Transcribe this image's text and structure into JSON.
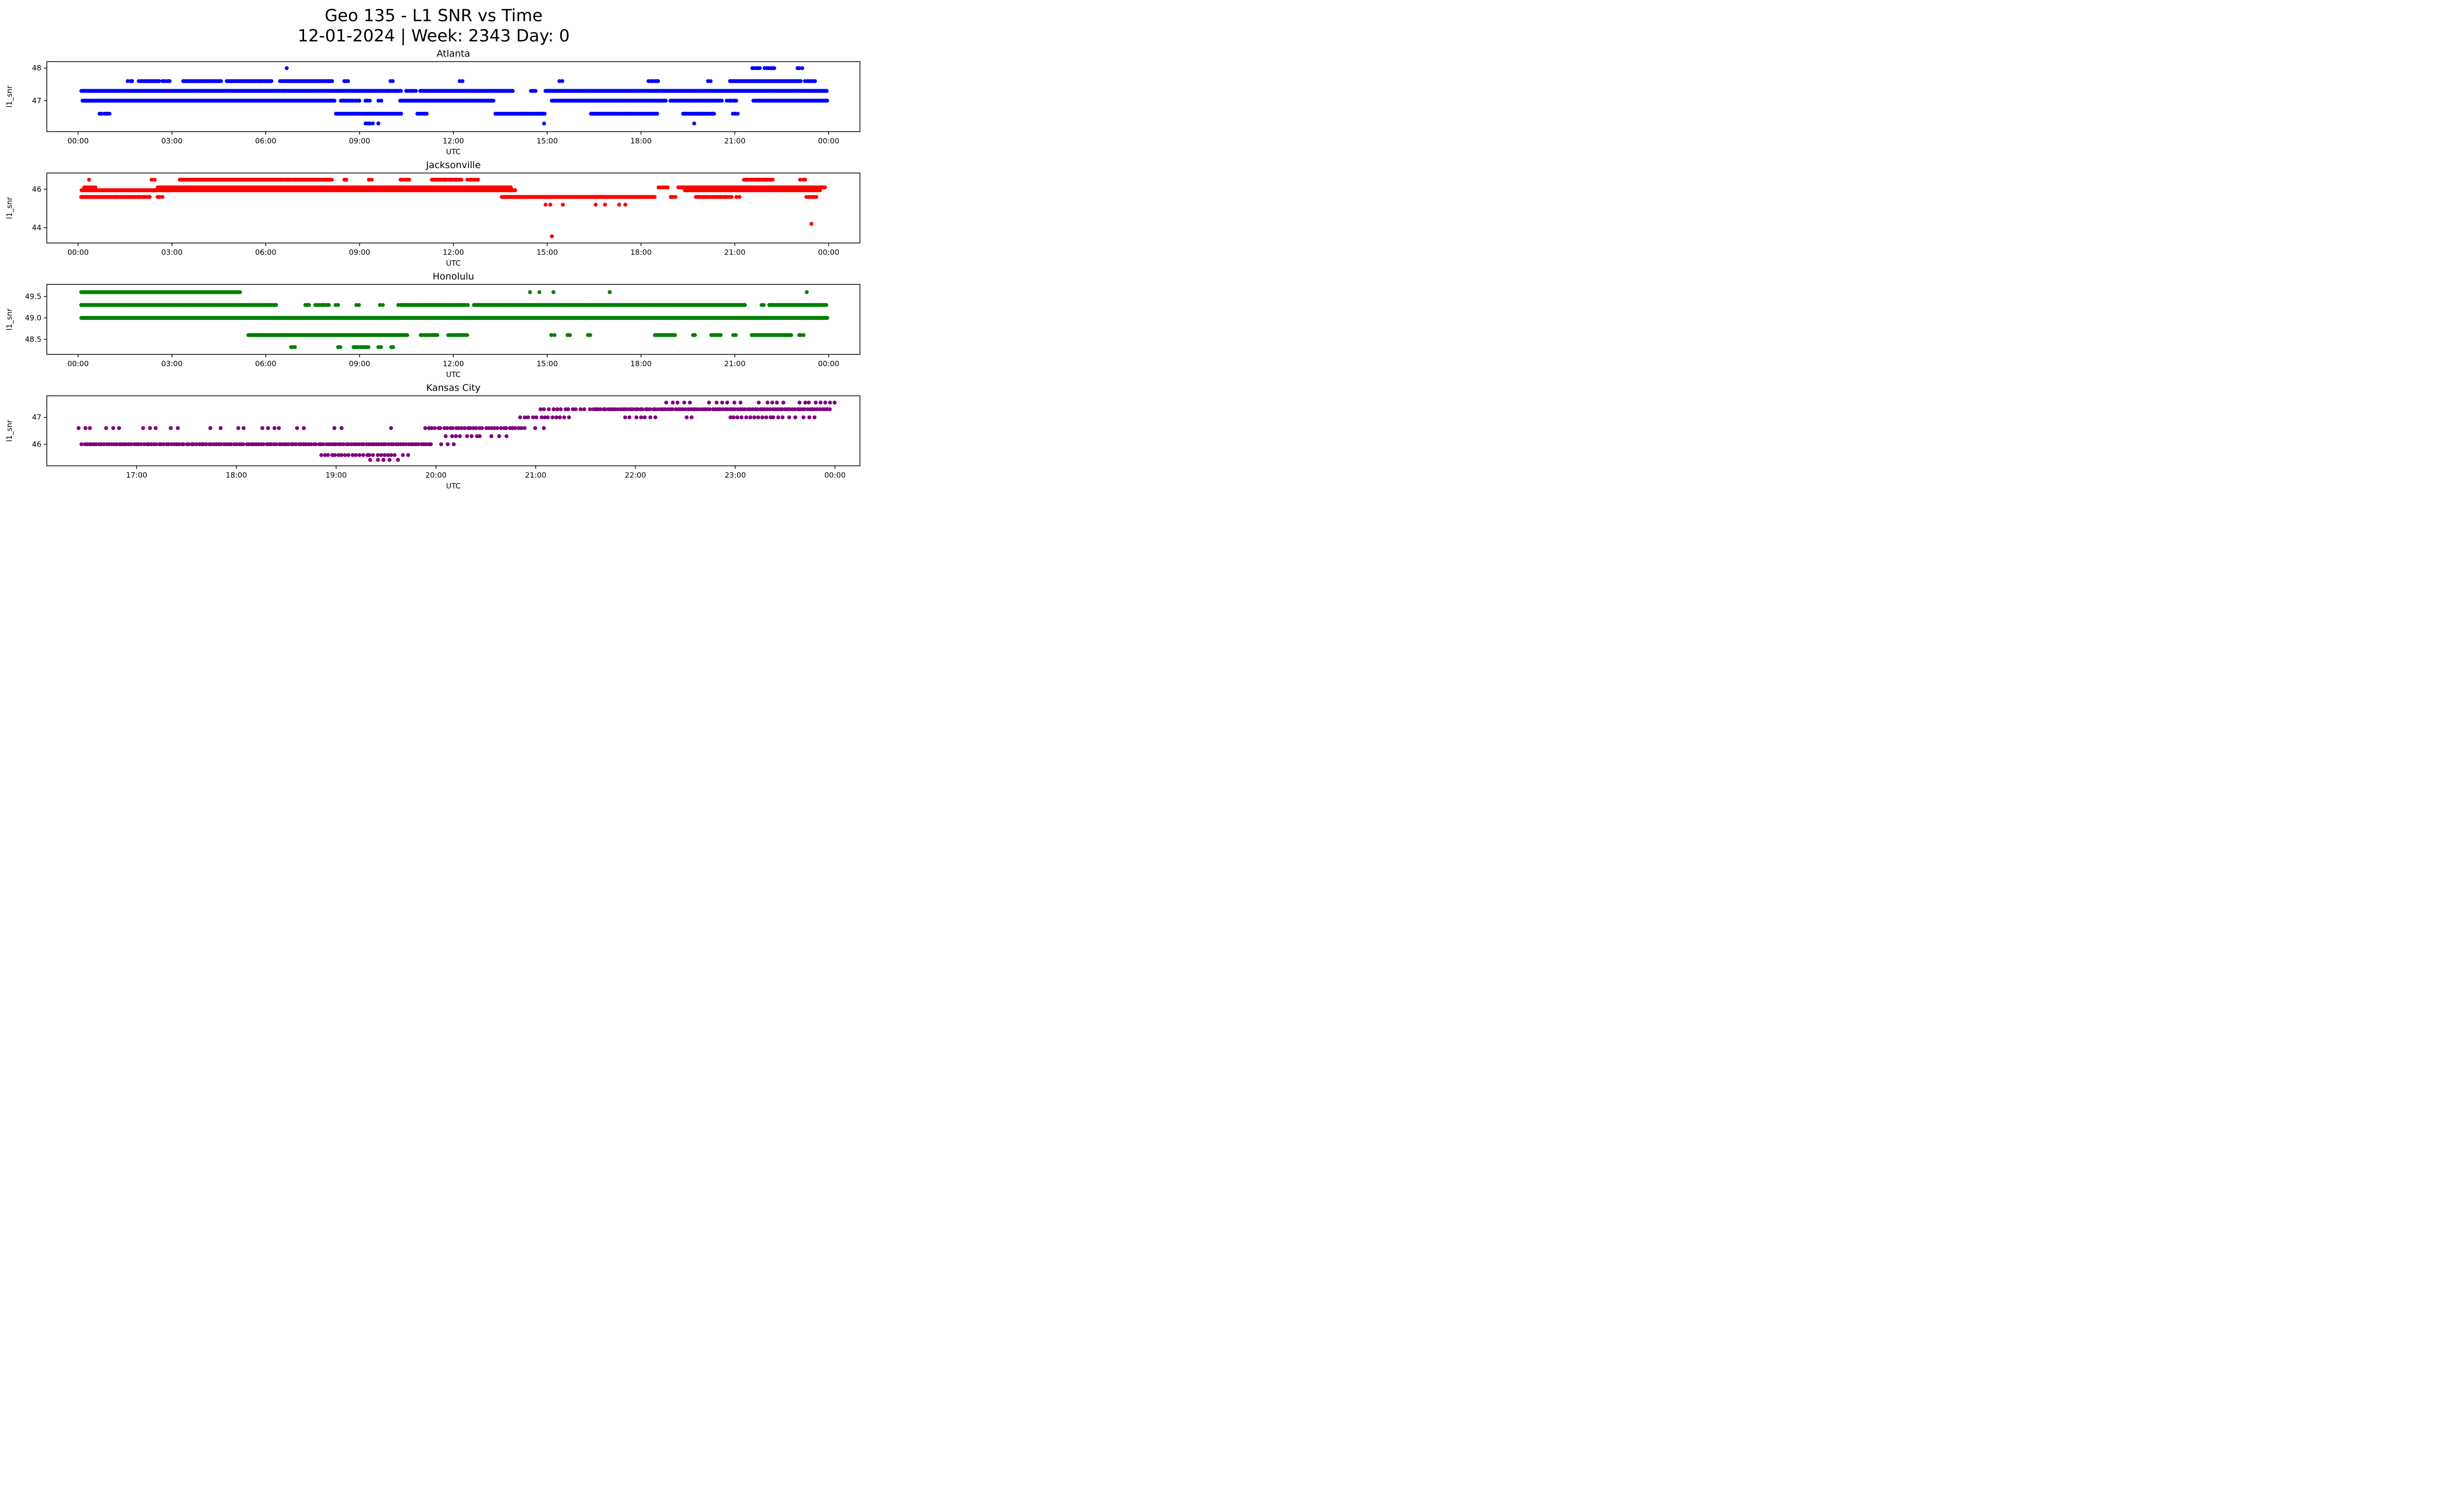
{
  "title": {
    "line1": "Geo 135 - L1 SNR vs Time",
    "line2": "12-01-2024 | Week: 2343 Day: 0"
  },
  "chart_data": [
    {
      "type": "scatter",
      "title": "Atlanta",
      "color": "#0000ff",
      "xlabel": "UTC",
      "ylabel": "l1_snr",
      "xlim": [
        -1.0,
        25.0
      ],
      "ylim": [
        46.05,
        48.2
      ],
      "xticks": [
        {
          "v": 0,
          "label": "00:00"
        },
        {
          "v": 3,
          "label": "03:00"
        },
        {
          "v": 6,
          "label": "06:00"
        },
        {
          "v": 9,
          "label": "09:00"
        },
        {
          "v": 12,
          "label": "12:00"
        },
        {
          "v": 15,
          "label": "15:00"
        },
        {
          "v": 18,
          "label": "18:00"
        },
        {
          "v": 21,
          "label": "21:00"
        },
        {
          "v": 24,
          "label": "00:00"
        }
      ],
      "yticks": [
        {
          "v": 47,
          "label": "47"
        },
        {
          "v": 48,
          "label": "48"
        }
      ],
      "bands": [
        {
          "y": 48.0,
          "seg": [
            [
              21.55,
              21.8,
              0.06
            ],
            [
              21.95,
              22.3,
              0.06
            ],
            [
              23.0,
              23.15,
              0.07
            ]
          ],
          "pts": [
            6.67
          ]
        },
        {
          "y": 47.6,
          "seg": [
            [
              1.6,
              1.75,
              0.07
            ],
            [
              1.95,
              2.6,
              0.05
            ],
            [
              2.7,
              2.95,
              0.06
            ],
            [
              3.35,
              4.6,
              0.045
            ],
            [
              4.75,
              6.2,
              0.045
            ],
            [
              6.45,
              8.15,
              0.045
            ],
            [
              8.5,
              8.65,
              0.07
            ],
            [
              10.0,
              10.1,
              0.08
            ],
            [
              12.2,
              12.35,
              0.08
            ],
            [
              15.4,
              15.5,
              0.08
            ],
            [
              18.25,
              18.55,
              0.06
            ],
            [
              20.15,
              20.25,
              0.08
            ],
            [
              20.85,
              23.1,
              0.045
            ],
            [
              23.25,
              23.6,
              0.06
            ]
          ]
        },
        {
          "y": 47.3,
          "seg": [
            [
              0.1,
              10.35,
              0.035
            ],
            [
              10.5,
              10.8,
              0.06
            ],
            [
              10.95,
              13.9,
              0.035
            ],
            [
              14.5,
              14.65,
              0.07
            ],
            [
              14.95,
              23.95,
              0.035
            ]
          ]
        },
        {
          "y": 47.0,
          "seg": [
            [
              0.15,
              8.2,
              0.035
            ],
            [
              8.4,
              9.0,
              0.05
            ],
            [
              9.2,
              9.35,
              0.07
            ],
            [
              9.6,
              9.7,
              0.08
            ],
            [
              10.3,
              13.3,
              0.035
            ],
            [
              15.15,
              18.8,
              0.035
            ],
            [
              18.95,
              20.6,
              0.04
            ],
            [
              20.75,
              21.1,
              0.06
            ],
            [
              21.6,
              23.95,
              0.035
            ]
          ]
        },
        {
          "y": 46.6,
          "seg": [
            [
              0.7,
              1.05,
              0.06
            ],
            [
              8.25,
              10.35,
              0.045
            ],
            [
              10.85,
              11.15,
              0.06
            ],
            [
              13.35,
              14.95,
              0.045
            ],
            [
              16.4,
              18.55,
              0.045
            ],
            [
              19.35,
              20.35,
              0.045
            ],
            [
              20.95,
              21.15,
              0.07
            ]
          ]
        },
        {
          "y": 46.3,
          "seg": [
            [
              9.2,
              9.45,
              0.07
            ]
          ],
          "pts": [
            9.6,
            14.9,
            19.7
          ]
        }
      ]
    },
    {
      "type": "scatter",
      "title": "Jacksonville",
      "color": "#ff0000",
      "xlabel": "UTC",
      "ylabel": "l1_snr",
      "xlim": [
        -1.0,
        25.0
      ],
      "ylim": [
        43.2,
        46.85
      ],
      "xticks": [
        {
          "v": 0,
          "label": "00:00"
        },
        {
          "v": 3,
          "label": "03:00"
        },
        {
          "v": 6,
          "label": "06:00"
        },
        {
          "v": 9,
          "label": "09:00"
        },
        {
          "v": 12,
          "label": "12:00"
        },
        {
          "v": 15,
          "label": "15:00"
        },
        {
          "v": 18,
          "label": "18:00"
        },
        {
          "v": 21,
          "label": "21:00"
        },
        {
          "v": 24,
          "label": "00:00"
        }
      ],
      "yticks": [
        {
          "v": 44,
          "label": "44"
        },
        {
          "v": 46,
          "label": "46"
        }
      ],
      "bands": [
        {
          "y": 46.5,
          "seg": [
            [
              2.35,
              2.45,
              0.08
            ],
            [
              3.25,
              8.15,
              0.045
            ],
            [
              8.5,
              8.6,
              0.08
            ],
            [
              9.3,
              9.45,
              0.08
            ],
            [
              10.3,
              10.6,
              0.07
            ],
            [
              11.3,
              12.25,
              0.05
            ],
            [
              12.45,
              12.85,
              0.07
            ],
            [
              21.3,
              22.2,
              0.05
            ],
            [
              23.1,
              23.3,
              0.07
            ]
          ],
          "pts": [
            0.35
          ]
        },
        {
          "y": 46.1,
          "seg": [
            [
              0.2,
              0.6,
              0.06
            ],
            [
              2.55,
              13.85,
              0.03
            ],
            [
              18.55,
              18.9,
              0.06
            ],
            [
              19.2,
              23.9,
              0.035
            ]
          ]
        },
        {
          "y": 45.95,
          "seg": [
            [
              0.12,
              14.0,
              0.033
            ],
            [
              19.4,
              23.75,
              0.045
            ]
          ]
        },
        {
          "y": 45.6,
          "seg": [
            [
              0.1,
              2.3,
              0.04
            ],
            [
              2.55,
              2.7,
              0.07
            ],
            [
              13.55,
              18.45,
              0.03
            ],
            [
              18.95,
              19.1,
              0.07
            ],
            [
              19.75,
              20.9,
              0.05
            ],
            [
              21.05,
              21.2,
              0.08
            ],
            [
              23.3,
              23.6,
              0.06
            ]
          ]
        },
        {
          "y": 45.2,
          "pts": [
            14.95,
            15.1,
            15.5,
            16.55,
            16.85,
            17.3,
            17.5
          ]
        },
        {
          "y": 44.2,
          "pts": [
            23.45
          ]
        },
        {
          "y": 43.55,
          "pts": [
            15.15
          ]
        }
      ]
    },
    {
      "type": "scatter",
      "title": "Honolulu",
      "color": "#008000",
      "xlabel": "UTC",
      "ylabel": "l1_snr",
      "xlim": [
        -1.0,
        25.0
      ],
      "ylim": [
        48.15,
        49.78
      ],
      "xticks": [
        {
          "v": 0,
          "label": "00:00"
        },
        {
          "v": 3,
          "label": "03:00"
        },
        {
          "v": 6,
          "label": "06:00"
        },
        {
          "v": 9,
          "label": "09:00"
        },
        {
          "v": 12,
          "label": "12:00"
        },
        {
          "v": 15,
          "label": "15:00"
        },
        {
          "v": 18,
          "label": "18:00"
        },
        {
          "v": 21,
          "label": "21:00"
        },
        {
          "v": 24,
          "label": "00:00"
        }
      ],
      "yticks": [
        {
          "v": 48.5,
          "label": "48.5"
        },
        {
          "v": 49.0,
          "label": "49.0"
        },
        {
          "v": 49.5,
          "label": "49.5"
        }
      ],
      "bands": [
        {
          "y": 49.6,
          "seg": [
            [
              0.1,
              5.2,
              0.033
            ]
          ],
          "pts": [
            14.45,
            14.75,
            15.2,
            17.0,
            23.3
          ]
        },
        {
          "y": 49.3,
          "seg": [
            [
              0.1,
              6.35,
              0.033
            ],
            [
              7.25,
              7.4,
              0.07
            ],
            [
              7.6,
              8.05,
              0.06
            ],
            [
              8.25,
              8.4,
              0.08
            ],
            [
              8.9,
              9.05,
              0.08
            ],
            [
              9.65,
              9.8,
              0.08
            ],
            [
              10.25,
              12.45,
              0.05
            ],
            [
              12.65,
              21.35,
              0.033
            ],
            [
              21.85,
              21.95,
              0.08
            ],
            [
              22.1,
              23.95,
              0.035
            ]
          ]
        },
        {
          "y": 49.0,
          "seg": [
            [
              0.1,
              23.95,
              0.03
            ]
          ]
        },
        {
          "y": 48.6,
          "seg": [
            [
              5.45,
              10.55,
              0.035
            ],
            [
              10.95,
              11.5,
              0.06
            ],
            [
              11.85,
              12.5,
              0.06
            ],
            [
              15.15,
              15.3,
              0.08
            ],
            [
              15.65,
              15.75,
              0.08
            ],
            [
              16.3,
              16.45,
              0.08
            ],
            [
              18.45,
              19.1,
              0.05
            ],
            [
              19.65,
              19.8,
              0.08
            ],
            [
              20.25,
              20.55,
              0.06
            ],
            [
              20.95,
              21.05,
              0.08
            ],
            [
              21.55,
              22.85,
              0.045
            ],
            [
              23.05,
              23.25,
              0.07
            ]
          ]
        },
        {
          "y": 48.32,
          "seg": [
            [
              6.8,
              7.0,
              0.07
            ],
            [
              8.3,
              8.4,
              0.08
            ],
            [
              8.8,
              9.3,
              0.055
            ],
            [
              9.6,
              9.7,
              0.08
            ],
            [
              10.0,
              10.1,
              0.08
            ]
          ]
        }
      ]
    },
    {
      "type": "scatter",
      "title": "Kansas City",
      "color": "#800080",
      "xlabel": "UTC",
      "ylabel": "l1_snr",
      "xlim": [
        16.1,
        24.25
      ],
      "ylim": [
        45.2,
        47.8
      ],
      "xticks": [
        {
          "v": 17,
          "label": "17:00"
        },
        {
          "v": 18,
          "label": "18:00"
        },
        {
          "v": 19,
          "label": "19:00"
        },
        {
          "v": 20,
          "label": "20:00"
        },
        {
          "v": 21,
          "label": "21:00"
        },
        {
          "v": 22,
          "label": "22:00"
        },
        {
          "v": 23,
          "label": "23:00"
        },
        {
          "v": 24,
          "label": "00:00"
        }
      ],
      "yticks": [
        {
          "v": 46,
          "label": "46"
        },
        {
          "v": 47,
          "label": "47"
        }
      ],
      "bands": [
        {
          "y": 47.55,
          "seg": [
            [
              22.3,
              22.55,
              0.06
            ],
            [
              22.75,
              23.1,
              0.06
            ],
            [
              23.25,
              23.5,
              0.06
            ],
            [
              23.65,
              24.0,
              0.05
            ]
          ]
        },
        {
          "y": 47.3,
          "seg": [
            [
              21.05,
              21.5,
              0.04
            ],
            [
              21.55,
              23.95,
              0.025
            ]
          ]
        },
        {
          "y": 47.0,
          "seg": [
            [
              20.85,
              21.35,
              0.04
            ],
            [
              21.9,
              22.2,
              0.05
            ],
            [
              22.5,
              22.6,
              0.08
            ],
            [
              22.95,
              23.5,
              0.04
            ],
            [
              23.55,
              23.8,
              0.06
            ]
          ]
        },
        {
          "y": 46.6,
          "seg": [
            [
              16.42,
              16.55,
              0.06
            ],
            [
              16.7,
              16.85,
              0.07
            ],
            [
              17.05,
              17.2,
              0.07
            ],
            [
              17.35,
              17.45,
              0.08
            ],
            [
              17.75,
              17.85,
              0.08
            ],
            [
              18.0,
              18.1,
              0.08
            ],
            [
              18.25,
              18.45,
              0.06
            ],
            [
              18.6,
              18.72,
              0.07
            ],
            [
              19.0,
              19.12,
              0.07
            ],
            [
              19.9,
              20.9,
              0.03
            ],
            [
              21.0,
              21.1,
              0.08
            ]
          ],
          "pts": [
            19.55
          ]
        },
        {
          "y": 46.3,
          "seg": [
            [
              20.1,
              20.45,
              0.05
            ],
            [
              20.55,
              20.7,
              0.07
            ]
          ]
        },
        {
          "y": 46.0,
          "seg": [
            [
              16.45,
              19.95,
              0.025
            ],
            [
              20.05,
              20.2,
              0.07
            ]
          ]
        },
        {
          "y": 45.6,
          "seg": [
            [
              18.85,
              19.55,
              0.035
            ],
            [
              19.6,
              19.75,
              0.06
            ]
          ]
        },
        {
          "y": 45.42,
          "seg": [
            [
              19.35,
              19.55,
              0.06
            ]
          ],
          "pts": [
            19.62
          ]
        }
      ]
    }
  ]
}
